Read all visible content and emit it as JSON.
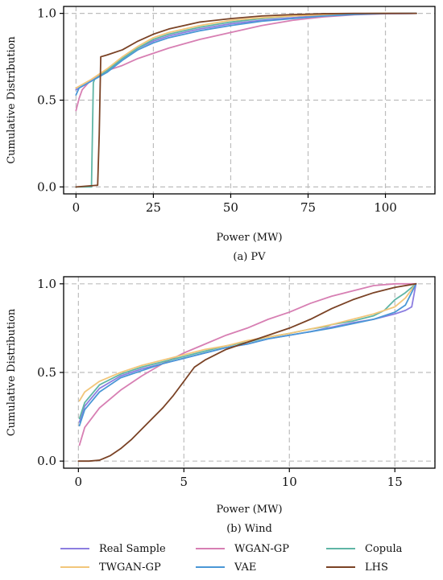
{
  "chart_data": [
    {
      "type": "line",
      "caption": "(a) PV",
      "xlabel": "Power (MW)",
      "ylabel": "Cumulative Distribution",
      "xlim": [
        -4,
        116
      ],
      "ylim": [
        -0.04,
        1.04
      ],
      "xticks": [
        0,
        25,
        50,
        75,
        100
      ],
      "yticks": [
        0.0,
        0.5,
        1.0
      ],
      "ytick_labels": [
        "0.0",
        "0.5",
        "1.0"
      ],
      "grid": true,
      "series": [
        {
          "name": "Real Sample",
          "color": "#8c7ee0",
          "x": [
            0,
            5,
            10,
            15,
            20,
            25,
            30,
            40,
            50,
            60,
            70,
            80,
            90,
            100,
            110
          ],
          "y": [
            0.56,
            0.61,
            0.67,
            0.74,
            0.8,
            0.84,
            0.87,
            0.91,
            0.94,
            0.96,
            0.975,
            0.988,
            0.995,
            0.999,
            1.0
          ]
        },
        {
          "name": "WGAN-GP",
          "color": "#d77fb3",
          "x": [
            0,
            1,
            2,
            5,
            10,
            15,
            20,
            25,
            30,
            40,
            50,
            60,
            70,
            80,
            90,
            100,
            110
          ],
          "y": [
            0.44,
            0.51,
            0.56,
            0.62,
            0.67,
            0.7,
            0.74,
            0.77,
            0.8,
            0.85,
            0.89,
            0.93,
            0.96,
            0.98,
            0.992,
            0.998,
            1.0
          ]
        },
        {
          "name": "Copula",
          "color": "#5fb5a5",
          "x": [
            0,
            5,
            5.6,
            6,
            10,
            15,
            20,
            25,
            30,
            40,
            50,
            60,
            70,
            80,
            90,
            100,
            110
          ],
          "y": [
            0.0,
            0.0,
            0.6,
            0.62,
            0.67,
            0.74,
            0.8,
            0.85,
            0.88,
            0.92,
            0.95,
            0.97,
            0.985,
            0.993,
            0.998,
            1.0,
            1.0
          ]
        },
        {
          "name": "TWGAN-GP",
          "color": "#f2c67a",
          "x": [
            0,
            5,
            10,
            15,
            20,
            25,
            30,
            40,
            50,
            60,
            70,
            80,
            90,
            100,
            110
          ],
          "y": [
            0.57,
            0.62,
            0.68,
            0.75,
            0.81,
            0.86,
            0.89,
            0.93,
            0.96,
            0.975,
            0.985,
            0.993,
            0.998,
            1.0,
            1.0
          ]
        },
        {
          "name": "VAE",
          "color": "#4a97d6",
          "x": [
            0,
            1,
            5,
            10,
            15,
            20,
            25,
            30,
            40,
            50,
            60,
            70,
            80,
            90,
            100,
            110
          ],
          "y": [
            0.53,
            0.57,
            0.61,
            0.66,
            0.73,
            0.79,
            0.83,
            0.86,
            0.9,
            0.93,
            0.955,
            0.97,
            0.985,
            0.994,
            0.999,
            1.0
          ]
        },
        {
          "name": "LHS",
          "color": "#7a4225",
          "x": [
            0,
            7,
            7.5,
            8,
            10,
            15,
            20,
            25,
            30,
            40,
            50,
            60,
            70,
            80,
            90,
            100,
            110
          ],
          "y": [
            0.0,
            0.01,
            0.3,
            0.75,
            0.76,
            0.79,
            0.84,
            0.88,
            0.91,
            0.95,
            0.97,
            0.985,
            0.993,
            0.998,
            1.0,
            1.0,
            1.0
          ]
        }
      ]
    },
    {
      "type": "line",
      "caption": "(b) Wind",
      "xlabel": "Power (MW)",
      "ylabel": "Cumulative Distribution",
      "xlim": [
        -0.7,
        16.9
      ],
      "ylim": [
        -0.04,
        1.04
      ],
      "xticks": [
        0,
        5,
        10,
        15
      ],
      "yticks": [
        0.0,
        0.5,
        1.0
      ],
      "ytick_labels": [
        "0.0",
        "0.5",
        "1.0"
      ],
      "grid": true,
      "series": [
        {
          "name": "Real Sample",
          "color": "#8c7ee0",
          "x": [
            0.05,
            0.3,
            1,
            2,
            3,
            4,
            5,
            6,
            7,
            8,
            9,
            10,
            11,
            12,
            13,
            14,
            15,
            15.5,
            15.8,
            16
          ],
          "y": [
            0.22,
            0.31,
            0.41,
            0.48,
            0.52,
            0.55,
            0.58,
            0.61,
            0.64,
            0.66,
            0.69,
            0.71,
            0.73,
            0.755,
            0.78,
            0.8,
            0.83,
            0.85,
            0.87,
            1.0
          ]
        },
        {
          "name": "WGAN-GP",
          "color": "#d77fb3",
          "x": [
            0.05,
            0.3,
            1,
            2,
            3,
            4,
            5,
            6,
            7,
            8,
            9,
            10,
            11,
            12,
            13,
            14,
            15,
            16
          ],
          "y": [
            0.09,
            0.19,
            0.3,
            0.4,
            0.48,
            0.55,
            0.61,
            0.66,
            0.71,
            0.75,
            0.8,
            0.84,
            0.89,
            0.93,
            0.96,
            0.99,
            1.0,
            1.0
          ]
        },
        {
          "name": "Copula",
          "color": "#5fb5a5",
          "x": [
            0.05,
            0.3,
            1,
            2,
            3,
            4,
            5,
            6,
            7,
            8,
            9,
            10,
            11,
            11.8,
            12,
            13,
            14,
            14.5,
            15,
            15.5,
            16
          ],
          "y": [
            0.24,
            0.33,
            0.43,
            0.49,
            0.53,
            0.56,
            0.59,
            0.62,
            0.65,
            0.67,
            0.7,
            0.72,
            0.745,
            0.76,
            0.77,
            0.79,
            0.82,
            0.85,
            0.91,
            0.95,
            1.0
          ]
        },
        {
          "name": "TWGAN-GP",
          "color": "#f2c67a",
          "x": [
            0.05,
            0.3,
            1,
            2,
            3,
            4,
            5,
            6,
            7,
            8,
            9,
            10,
            11,
            12,
            13,
            14,
            15,
            15.5,
            16
          ],
          "y": [
            0.34,
            0.39,
            0.45,
            0.5,
            0.54,
            0.57,
            0.6,
            0.63,
            0.65,
            0.68,
            0.7,
            0.72,
            0.745,
            0.77,
            0.8,
            0.83,
            0.87,
            0.92,
            1.0
          ]
        },
        {
          "name": "VAE",
          "color": "#4a97d6",
          "x": [
            0.05,
            0.3,
            1,
            2,
            3,
            4,
            5,
            6,
            7,
            8,
            9,
            10,
            11,
            12,
            13,
            14,
            15,
            15.5,
            16
          ],
          "y": [
            0.2,
            0.29,
            0.39,
            0.47,
            0.51,
            0.55,
            0.58,
            0.61,
            0.64,
            0.66,
            0.69,
            0.71,
            0.73,
            0.75,
            0.775,
            0.8,
            0.84,
            0.88,
            1.0
          ]
        },
        {
          "name": "LHS",
          "color": "#7a4225",
          "x": [
            0,
            0.5,
            1,
            1.5,
            2,
            2.5,
            3,
            3.5,
            4,
            4.5,
            5,
            5.5,
            6,
            7,
            8,
            9,
            10,
            11,
            12,
            13,
            14,
            15,
            16
          ],
          "y": [
            0.0,
            0.0,
            0.005,
            0.03,
            0.07,
            0.12,
            0.18,
            0.24,
            0.3,
            0.37,
            0.45,
            0.53,
            0.57,
            0.63,
            0.67,
            0.71,
            0.75,
            0.8,
            0.86,
            0.91,
            0.95,
            0.98,
            1.0
          ]
        }
      ]
    }
  ],
  "legend": {
    "items": [
      {
        "label": "Real Sample",
        "color": "#8c7ee0"
      },
      {
        "label": "WGAN-GP",
        "color": "#d77fb3"
      },
      {
        "label": "Copula",
        "color": "#5fb5a5"
      },
      {
        "label": "TWGAN-GP",
        "color": "#f2c67a"
      },
      {
        "label": "VAE",
        "color": "#4a97d6"
      },
      {
        "label": "LHS",
        "color": "#7a4225"
      }
    ]
  }
}
